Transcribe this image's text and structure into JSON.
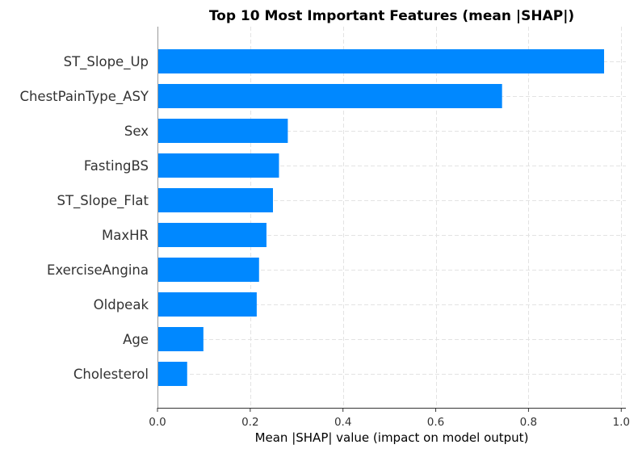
{
  "chart_data": {
    "type": "bar",
    "orientation": "horizontal",
    "title": "Top 10 Most Important Features (mean |SHAP|)",
    "xlabel": "Mean |SHAP| value (impact on model output)",
    "ylabel": "",
    "categories": [
      "ST_Slope_Up",
      "ChestPainType_ASY",
      "Sex",
      "FastingBS",
      "ST_Slope_Flat",
      "MaxHR",
      "ExerciseAngina",
      "Oldpeak",
      "Age",
      "Cholesterol"
    ],
    "values": [
      0.963,
      0.743,
      0.281,
      0.262,
      0.249,
      0.235,
      0.219,
      0.214,
      0.099,
      0.064
    ],
    "xlim": [
      0,
      1.01
    ],
    "xticks": [
      0.0,
      0.2,
      0.4,
      0.6,
      0.8,
      1.0
    ],
    "xtick_labels": [
      "0.0",
      "0.2",
      "0.4",
      "0.6",
      "0.8",
      "1.0"
    ],
    "grid": true,
    "bar_color": "#0088ff"
  }
}
